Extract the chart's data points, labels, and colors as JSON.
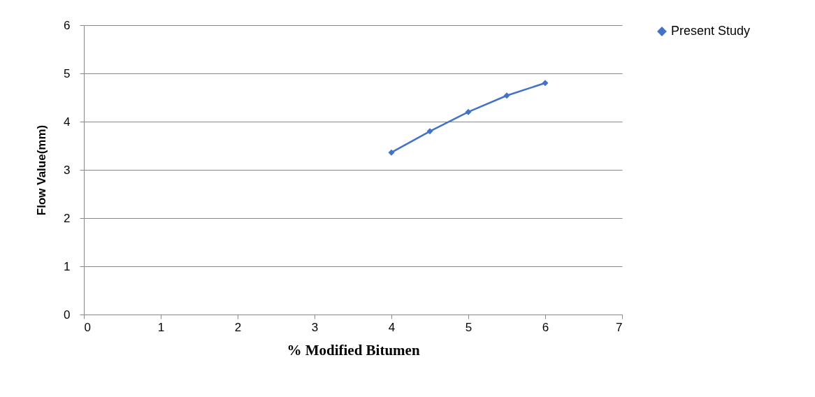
{
  "chart_data": {
    "type": "line",
    "xlabel": "% Modified Bitumen",
    "ylabel": "Flow Value(mm)",
    "x": [
      4,
      4.5,
      5,
      5.5,
      6
    ],
    "series": [
      {
        "name": "Present Study",
        "color": "#4472c4",
        "values": [
          3.36,
          3.8,
          4.2,
          4.54,
          4.8
        ]
      }
    ],
    "xlim": [
      0,
      7
    ],
    "xticks": [
      0,
      1,
      2,
      3,
      4,
      5,
      6,
      7
    ],
    "ylim": [
      0,
      6
    ],
    "yticks": [
      0,
      1,
      2,
      3,
      4,
      5,
      6
    ],
    "grid": "y",
    "legend": "right",
    "marker": "diamond",
    "line_style": "solid"
  }
}
